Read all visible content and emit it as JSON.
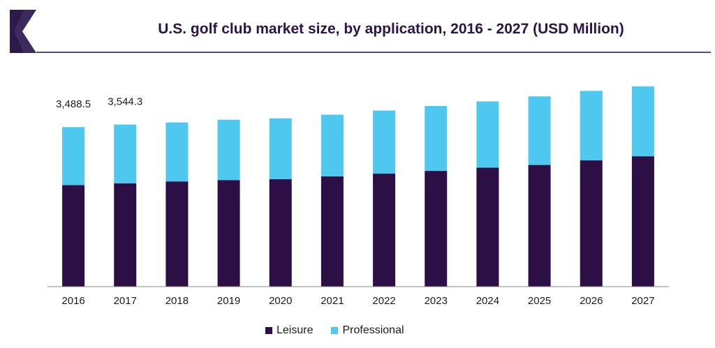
{
  "colors": {
    "leisure": "#2b0f45",
    "professional": "#4fc8f0",
    "title": "#2a1546",
    "accent": "#3a2a5e"
  },
  "logo": {
    "name": "grand-view-logo-icon"
  },
  "chart_data": {
    "type": "bar",
    "stacked": true,
    "title": "U.S. golf club market size, by application, 2016 - 2027 (USD Million)",
    "categories": [
      "2016",
      "2017",
      "2018",
      "2019",
      "2020",
      "2021",
      "2022",
      "2023",
      "2024",
      "2025",
      "2026",
      "2027"
    ],
    "series": [
      {
        "name": "Leisure",
        "values": [
          2220,
          2260,
          2300,
          2330,
          2350,
          2410,
          2470,
          2530,
          2600,
          2660,
          2760,
          2850
        ]
      },
      {
        "name": "Professional",
        "values": [
          1268.5,
          1284.3,
          1290,
          1320,
          1330,
          1350,
          1380,
          1420,
          1450,
          1500,
          1520,
          1530
        ]
      }
    ],
    "data_labels": [
      {
        "category": "2016",
        "text": "3,488.5"
      },
      {
        "category": "2017",
        "text": "3,544.3"
      }
    ],
    "xlabel": "",
    "ylabel": "",
    "ylim": [
      0,
      5200
    ],
    "legend_position": "bottom"
  }
}
